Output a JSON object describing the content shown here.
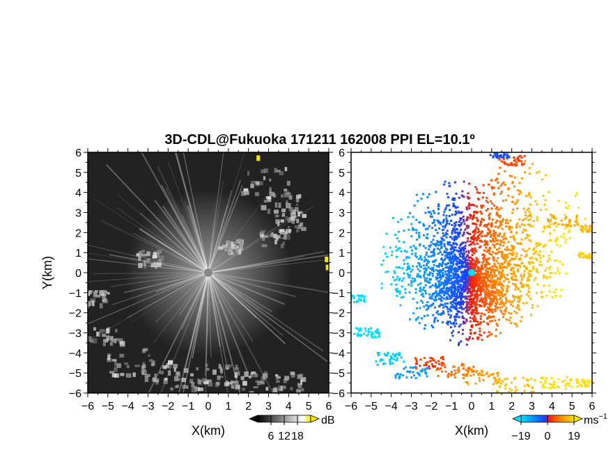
{
  "chart_data": [
    {
      "type": "heatmap",
      "panel": "left",
      "title": "3D-CDL@Fukuoka 171211 162008 PPI EL=10.1º",
      "xlabel": "X(km)",
      "ylabel": "Y(km)",
      "xlim": [
        -6,
        6
      ],
      "ylim": [
        -6,
        6
      ],
      "x_ticks": [
        "−6",
        "−5",
        "−4",
        "−3",
        "−2",
        "−1",
        "0",
        "1",
        "2",
        "3",
        "4",
        "5",
        "6"
      ],
      "y_ticks": [
        "6",
        "5",
        "4",
        "3",
        "2",
        "1",
        "0",
        "−1",
        "−2",
        "−3",
        "−4",
        "−5",
        "−6"
      ],
      "colorbar": {
        "unit": "dB",
        "tick_labels": [
          "6",
          "12",
          "18"
        ],
        "tick_values": [
          6,
          12,
          18
        ],
        "range": [
          0,
          24
        ],
        "colormap": "grayscale-to-yellow",
        "colors": [
          "#000000",
          "#ffffff",
          "#f2e600"
        ]
      }
    },
    {
      "type": "heatmap",
      "panel": "right",
      "xlabel": "X(km)",
      "xlim": [
        -6,
        6
      ],
      "ylim": [
        -6,
        6
      ],
      "x_ticks": [
        "−6",
        "−5",
        "−4",
        "−3",
        "−2",
        "−1",
        "0",
        "1",
        "2",
        "3",
        "4",
        "5",
        "6"
      ],
      "y_ticks": [
        "6",
        "5",
        "4",
        "3",
        "2",
        "1",
        "0",
        "−1",
        "−2",
        "−3",
        "−4",
        "−5",
        "−6"
      ],
      "colorbar": {
        "unit": "ms",
        "unit_superscript": "−1",
        "tick_labels": [
          "−19",
          "0",
          "19"
        ],
        "tick_values": [
          -19,
          0,
          19
        ],
        "range": [
          -19,
          19
        ],
        "colormap": "cyan-blue-red-yellow",
        "colors": [
          "#00e0ff",
          "#1a40ff",
          "#ff1a00",
          "#ff8a00",
          "#ffe600"
        ]
      }
    }
  ]
}
